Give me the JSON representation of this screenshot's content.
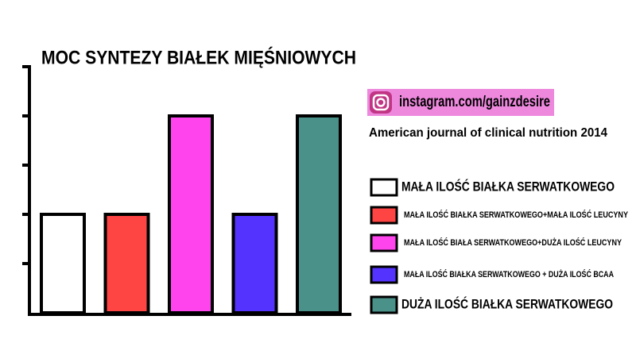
{
  "chart_data": {
    "type": "bar",
    "title": "MOC SYNTEZY BIAŁEK MIĘŚNIOWYCH",
    "source_handle": "instagram.com/gainzdesire",
    "citation": "American journal of clinical nutrition 2014",
    "categories": [
      "MAŁA ILOŚĆ BIAŁKA SERWATKOWEGO",
      "MAŁA ILOŚĆ BIAŁKA SERWATKOWEGO+MAŁA ILOŚĆ LEUCYNY",
      "MAŁA ILOŚĆ BIAŁA SERWATKOWEGO+DUŻA ILOŚĆ LEUCYNY",
      "MAŁA ILOŚĆ BIAŁKA SERWATKOWEGO + DUŻA ILOŚĆ BCAA",
      "DUŻA ILOŚĆ BIAŁKA SERWATKOWEGO"
    ],
    "values": [
      2,
      2,
      4,
      2,
      4
    ],
    "colors": [
      "#ffffff",
      "#ff4444",
      "#ff44ee",
      "#5533ff",
      "#4a918a"
    ],
    "ylim": [
      0,
      5
    ],
    "yticks": [
      1,
      2,
      3,
      4,
      5
    ]
  }
}
